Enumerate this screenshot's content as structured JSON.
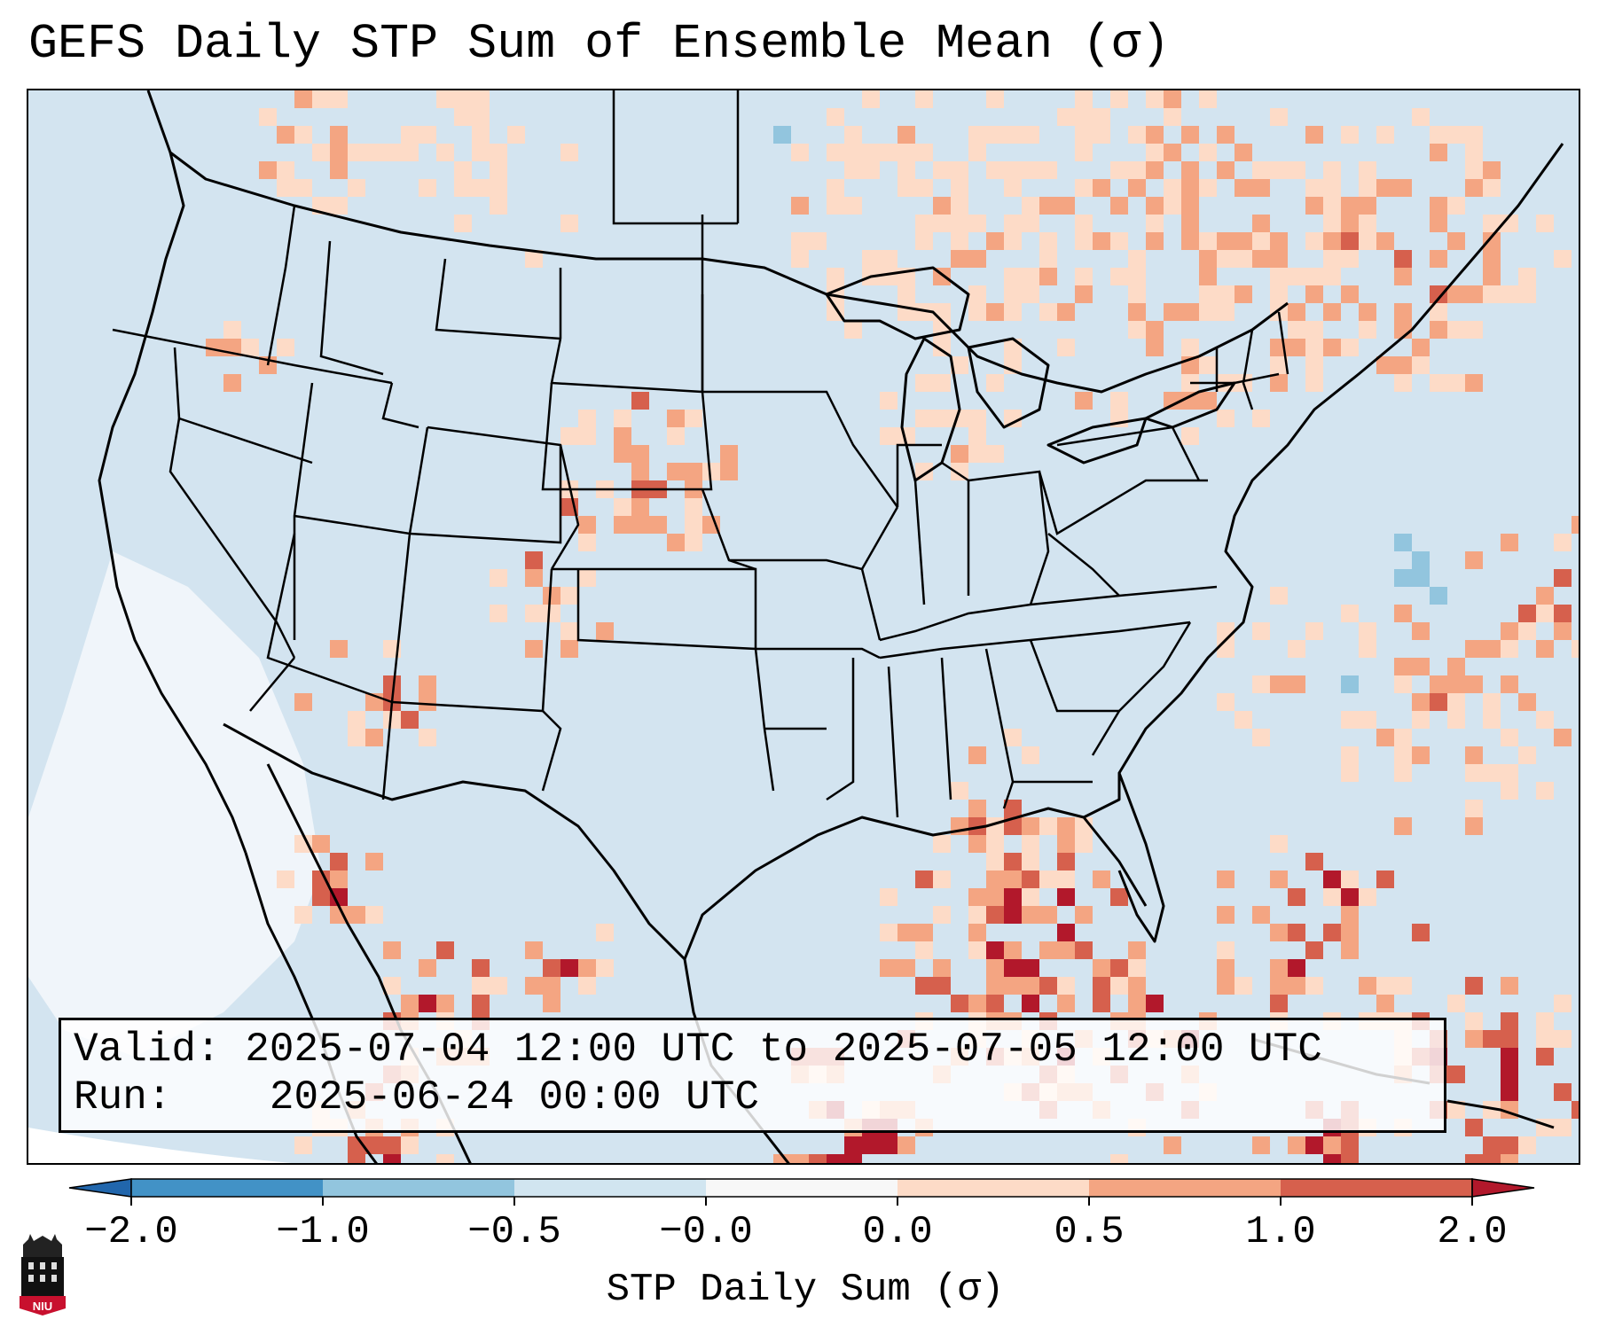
{
  "title": "GEFS Daily STP Sum of Ensemble Mean (σ)",
  "info": {
    "valid_label": "Valid:",
    "valid_text": "2025-07-04 12:00 UTC to 2025-07-05 12:00 UTC",
    "run_label": "Run:",
    "run_text": "2025-06-24 00:00 UTC"
  },
  "colorbar": {
    "label": "STP Daily Sum (σ)",
    "tick_labels": [
      "−2.0",
      "−1.0",
      "−0.5",
      "−0.0",
      "0.0",
      "0.5",
      "1.0",
      "2.0"
    ],
    "bins": [
      {
        "from": -2.0,
        "to": -1.0,
        "color": "#4292c6"
      },
      {
        "from": -1.0,
        "to": -0.5,
        "color": "#92c5de"
      },
      {
        "from": -0.5,
        "to": -0.0,
        "color": "#d1e5f0"
      },
      {
        "from": -0.0,
        "to": 0.0,
        "color": "#f7f7f7"
      },
      {
        "from": 0.0,
        "to": 0.5,
        "color": "#fddbc7"
      },
      {
        "from": 0.5,
        "to": 1.0,
        "color": "#f4a582"
      },
      {
        "from": 1.0,
        "to": 2.0,
        "color": "#d6604d"
      }
    ],
    "under_color": "#2166ac",
    "over_color": "#b2182b"
  },
  "map": {
    "background_color": "#d1e5f0",
    "land_outline_color": "#000000",
    "region": "Contiguous United States, southern Canada, northern Mexico, Gulf of Mexico, western Atlantic"
  },
  "logo": {
    "text": "NIU"
  }
}
